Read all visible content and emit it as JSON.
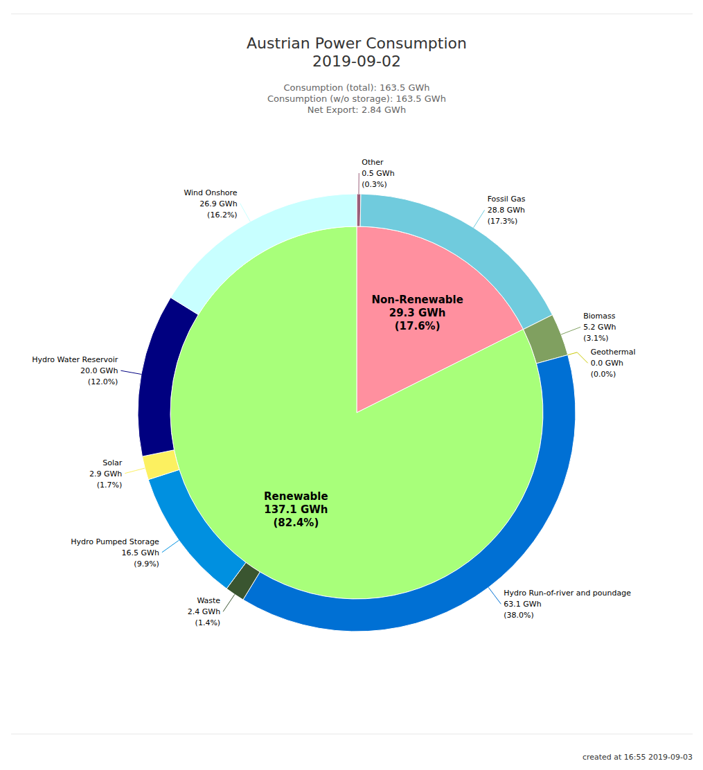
{
  "chart_data": {
    "type": "pie",
    "title": "Austrian Power Consumption",
    "date": "2019-09-02",
    "subtitle": [
      "Consumption (total): 163.5 GWh",
      "Consumption (w/o storage): 163.5 GWh",
      "Net Export: 2.84 GWh"
    ],
    "footer": "created at 16:55 2019-09-03",
    "data_labels": true,
    "inner": {
      "categories": [
        "Non-Renewable",
        "Renewable"
      ],
      "values": [
        29.3,
        137.1
      ],
      "value_labels": [
        "29.3 GWh",
        "137.1 GWh"
      ],
      "percent_labels": [
        "(17.6%)",
        "(82.4%)"
      ],
      "colors": [
        "#ff909f",
        "#a8ff7a"
      ]
    },
    "outer": {
      "categories": [
        "Other",
        "Fossil Gas",
        "Biomass",
        "Geothermal",
        "Hydro Run-of-river and poundage",
        "Waste",
        "Hydro Pumped Storage",
        "Solar",
        "Hydro Water Reservoir",
        "Wind Onshore"
      ],
      "values": [
        0.5,
        28.8,
        5.2,
        0.0,
        63.1,
        2.4,
        16.5,
        2.9,
        20.0,
        26.9
      ],
      "value_labels": [
        "0.5 GWh",
        "28.8 GWh",
        "5.2 GWh",
        "0.0 GWh",
        "63.1 GWh",
        "2.4 GWh",
        "16.5 GWh",
        "2.9 GWh",
        "20.0 GWh",
        "26.9 GWh"
      ],
      "percent_labels": [
        "(0.3%)",
        "(17.3%)",
        "(3.1%)",
        "(0.0%)",
        "(38.0%)",
        "(1.4%)",
        "(9.9%)",
        "(1.7%)",
        "(12.0%)",
        "(16.2%)"
      ],
      "colors": [
        "#9b5f7a",
        "#70cbdd",
        "#80a060",
        "#c8c800",
        "#0070d4",
        "#3a5530",
        "#0090e0",
        "#fcf060",
        "#000080",
        "#c8ffff"
      ]
    }
  }
}
